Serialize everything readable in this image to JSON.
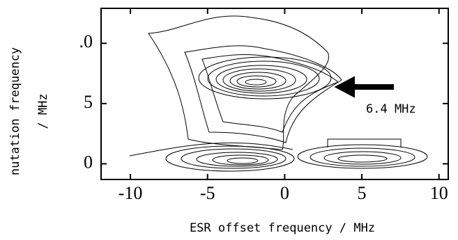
{
  "chart_data": {
    "type": "contour",
    "xlabel": "ESR offset frequency /  MHz",
    "ylabel": [
      "nutation frequency",
      "/  MHz"
    ],
    "xlim": [
      -11.9,
      10.6
    ],
    "ylim": [
      -1.3,
      12.9
    ],
    "xticks": [
      -10,
      -5,
      0,
      5,
      10
    ],
    "yticks": [
      0,
      5,
      {
        "value": 10,
        "label": ".0"
      }
    ],
    "annotation": "6.4 MHz"
  }
}
